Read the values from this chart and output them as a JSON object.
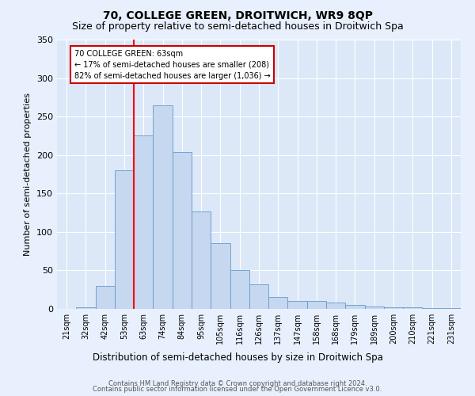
{
  "title": "70, COLLEGE GREEN, DROITWICH, WR9 8QP",
  "subtitle": "Size of property relative to semi-detached houses in Droitwich Spa",
  "xlabel": "Distribution of semi-detached houses by size in Droitwich Spa",
  "ylabel": "Number of semi-detached properties",
  "categories": [
    "21sqm",
    "32sqm",
    "42sqm",
    "53sqm",
    "63sqm",
    "74sqm",
    "84sqm",
    "95sqm",
    "105sqm",
    "116sqm",
    "126sqm",
    "137sqm",
    "147sqm",
    "158sqm",
    "168sqm",
    "179sqm",
    "189sqm",
    "200sqm",
    "210sqm",
    "221sqm",
    "231sqm"
  ],
  "values": [
    0,
    2,
    30,
    180,
    225,
    265,
    204,
    127,
    85,
    50,
    32,
    15,
    10,
    10,
    8,
    5,
    3,
    2,
    2,
    1,
    1
  ],
  "bar_color": "#c5d8f0",
  "bar_edge_color": "#6699cc",
  "red_line_index": 4,
  "annotation_lines": [
    "70 COLLEGE GREEN: 63sqm",
    "← 17% of semi-detached houses are smaller (208)",
    "82% of semi-detached houses are larger (1,036) →"
  ],
  "ylim": [
    0,
    350
  ],
  "yticks": [
    0,
    50,
    100,
    150,
    200,
    250,
    300,
    350
  ],
  "background_color": "#e8f0fe",
  "plot_bg_color": "#dce8f8",
  "grid_color": "#ffffff",
  "footer_line1": "Contains HM Land Registry data © Crown copyright and database right 2024.",
  "footer_line2": "Contains public sector information licensed under the Open Government Licence v3.0.",
  "title_fontsize": 10,
  "subtitle_fontsize": 9,
  "annotation_box_color": "#ffffff",
  "annotation_box_edge": "#cc0000"
}
